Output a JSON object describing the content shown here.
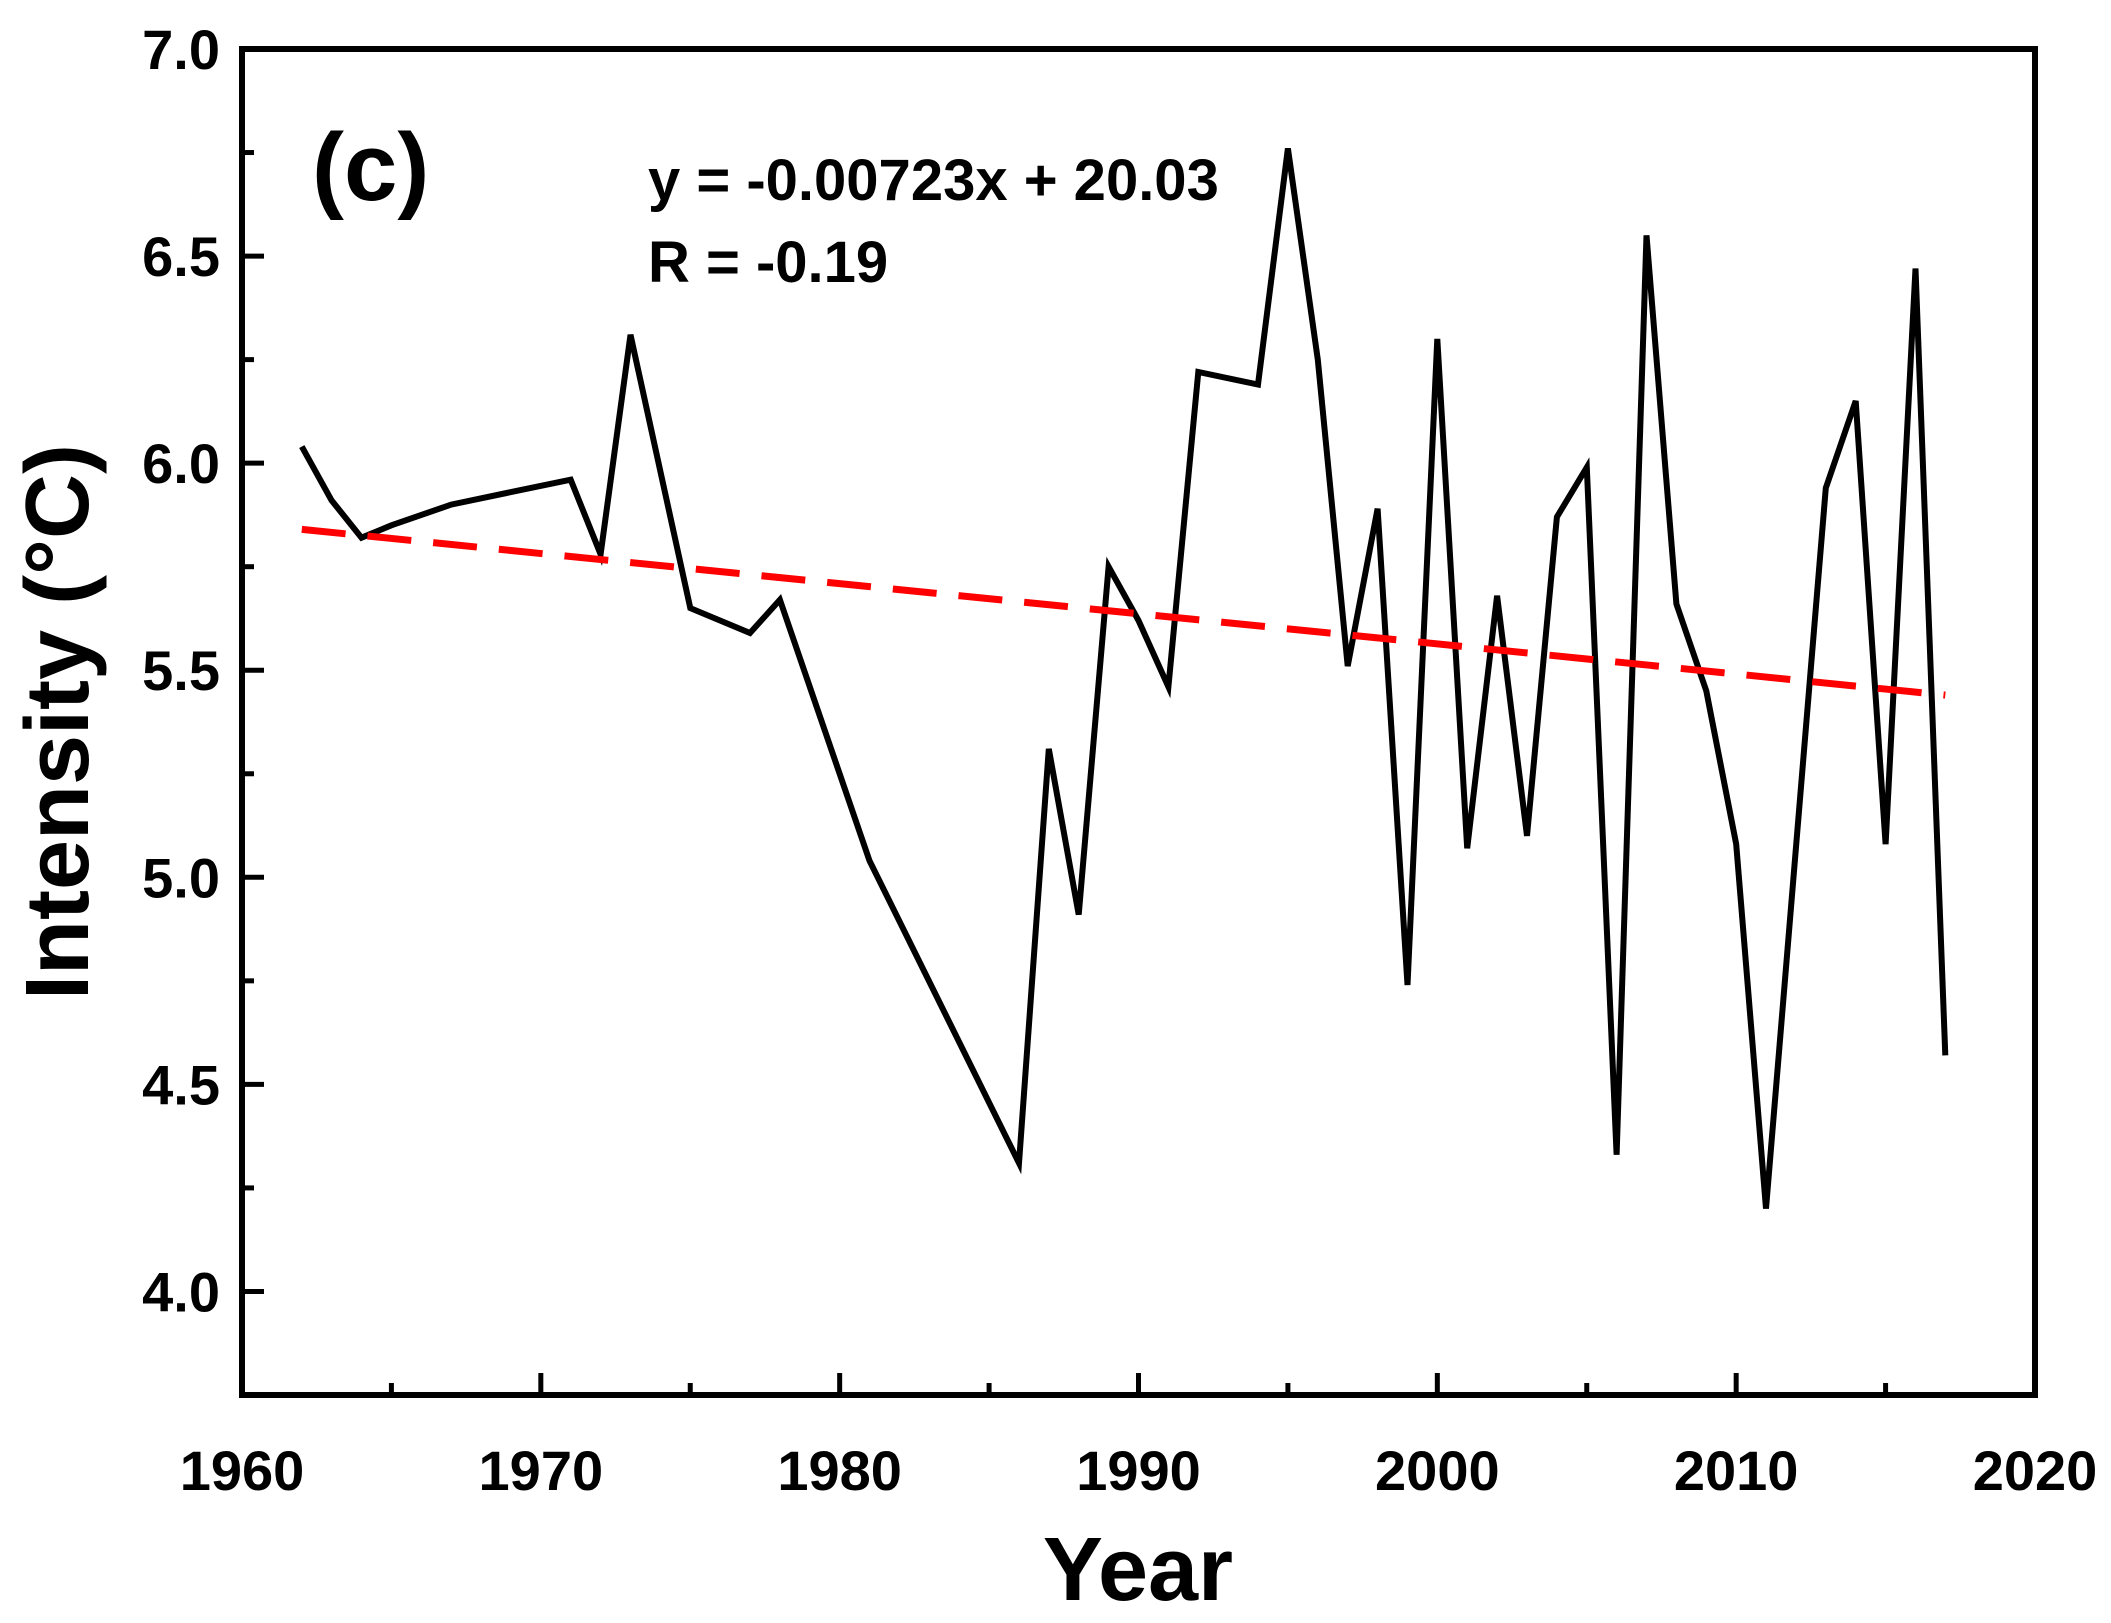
{
  "chart_data": {
    "type": "line",
    "panel_label": "(c)",
    "xlabel": "Year",
    "ylabel": "Intensity (°C)",
    "xlim": [
      1960,
      2020
    ],
    "ylim": [
      3.75,
      7.0
    ],
    "xticks": [
      1960,
      1970,
      1980,
      1990,
      2000,
      2010,
      2020
    ],
    "xtick_labels": [
      "1960",
      "1970",
      "1980",
      "1990",
      "2000",
      "2010",
      "2020"
    ],
    "yticks": [
      4.0,
      4.5,
      5.0,
      5.5,
      6.0,
      6.5,
      7.0
    ],
    "ytick_labels": [
      "4.0",
      "4.5",
      "5.0",
      "5.5",
      "6.0",
      "6.5",
      "7.0"
    ],
    "annotations": [
      "y = -0.00723x + 20.03",
      "R = -0.19"
    ],
    "series": [
      {
        "name": "Intensity",
        "color": "#000000",
        "style": "solid",
        "x": [
          1962,
          1963,
          1964,
          1965,
          1967,
          1969,
          1971,
          1972,
          1973,
          1975,
          1977,
          1978,
          1981,
          1986,
          1987,
          1988,
          1989,
          1990,
          1991,
          1992,
          1994,
          1995,
          1996,
          1997,
          1998,
          1999,
          2000,
          2001,
          2002,
          2003,
          2004,
          2005,
          2006,
          2007,
          2008,
          2009,
          2010,
          2011,
          2013,
          2014,
          2015,
          2016,
          2017
        ],
        "values": [
          6.04,
          5.91,
          5.82,
          5.85,
          5.9,
          5.93,
          5.96,
          5.78,
          6.31,
          5.65,
          5.59,
          5.67,
          5.04,
          4.31,
          5.31,
          4.91,
          5.75,
          5.62,
          5.46,
          6.22,
          6.19,
          6.76,
          6.25,
          5.51,
          5.89,
          4.74,
          6.3,
          5.07,
          5.68,
          5.1,
          5.87,
          5.99,
          4.33,
          6.55,
          5.66,
          5.45,
          5.08,
          4.2,
          5.94,
          6.15,
          5.08,
          6.47,
          4.57
        ]
      },
      {
        "name": "Linear fit",
        "color": "#ff0000",
        "style": "dashed",
        "x": [
          1962,
          2017
        ],
        "values": [
          5.84,
          5.44
        ]
      }
    ]
  }
}
